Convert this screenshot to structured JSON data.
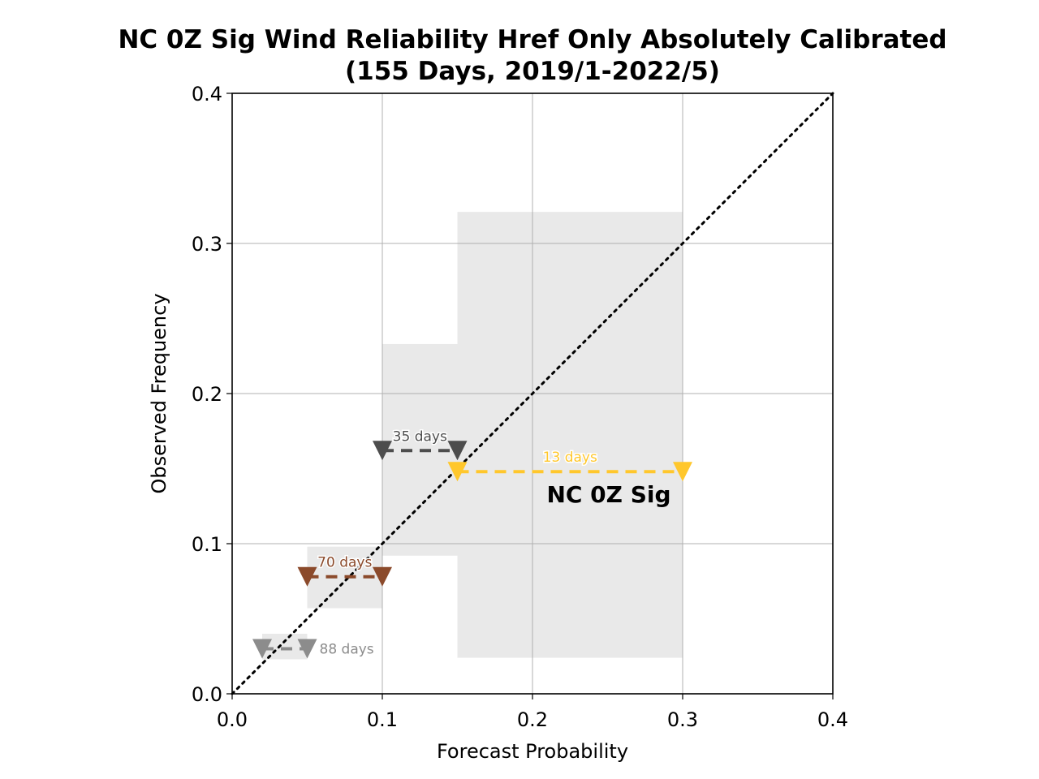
{
  "chart_data": {
    "type": "scatter",
    "title": "NC 0Z Sig Wind Reliability Href Only Absolutely Calibrated",
    "subtitle": "(155 Days, 2019/1-2022/5)",
    "xlabel": "Forecast Probability",
    "ylabel": "Observed Frequency",
    "xlim": [
      0.0,
      0.4
    ],
    "ylim": [
      0.0,
      0.4
    ],
    "x_ticks": [
      "0.0",
      "0.1",
      "0.2",
      "0.3",
      "0.4"
    ],
    "y_ticks": [
      "0.0",
      "0.1",
      "0.2",
      "0.3",
      "0.4"
    ],
    "grid": true,
    "diagonal": "perfect-reliability",
    "annotation": "NC 0Z Sig",
    "bins": [
      {
        "x_lo": 0.02,
        "x_hi": 0.05,
        "observed": 0.03,
        "ci": [
          0.023,
          0.04
        ],
        "label": "88 days",
        "color": "#8c8c8c"
      },
      {
        "x_lo": 0.05,
        "x_hi": 0.1,
        "observed": 0.078,
        "ci": [
          0.057,
          0.098
        ],
        "label": "70 days",
        "color": "#8b4a2b"
      },
      {
        "x_lo": 0.1,
        "x_hi": 0.15,
        "observed": 0.162,
        "ci": [
          0.092,
          0.233
        ],
        "label": "35 days",
        "color": "#4d4d4d"
      },
      {
        "x_lo": 0.15,
        "x_hi": 0.3,
        "observed": 0.148,
        "ci": [
          0.024,
          0.321
        ],
        "label": "13 days",
        "color": "#ffc72c"
      }
    ]
  }
}
